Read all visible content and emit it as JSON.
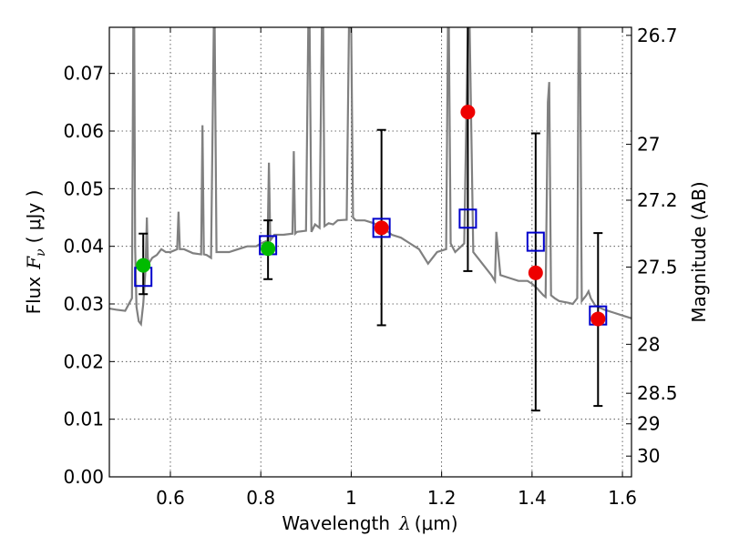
{
  "chart_data": {
    "type": "scatter",
    "xlabel": "Wavelength",
    "xlabel_symbol": "λ",
    "xlabel_unit": "(μm)",
    "ylabel": "Flux",
    "ylabel_symbol": "F",
    "ylabel_subscript": "ν",
    "ylabel_unit": "( μJy )",
    "y2label": "Magnitude (AB)",
    "xlim": [
      0.465,
      1.62
    ],
    "ylim": [
      0.0,
      0.078
    ],
    "x_ticks": [
      0.6,
      0.8,
      1.0,
      1.2,
      1.4,
      1.6
    ],
    "x_tick_labels": [
      "0.6",
      "0.8",
      "1",
      "1.2",
      "1.4",
      "1.6"
    ],
    "y_ticks": [
      0.0,
      0.01,
      0.02,
      0.03,
      0.04,
      0.05,
      0.06,
      0.07
    ],
    "y_tick_labels": [
      "0.00",
      "0.01",
      "0.02",
      "0.03",
      "0.04",
      "0.05",
      "0.06",
      "0.07"
    ],
    "y2_ticks": [
      {
        "label": "26.7",
        "flux": 0.0766
      },
      {
        "label": "27",
        "flux": 0.0577
      },
      {
        "label": "27.2",
        "flux": 0.048
      },
      {
        "label": "27.5",
        "flux": 0.0364
      },
      {
        "label": "28",
        "flux": 0.023
      },
      {
        "label": "28.5",
        "flux": 0.0145
      },
      {
        "label": "29",
        "flux": 0.0092
      },
      {
        "label": "30",
        "flux": 0.0036
      }
    ],
    "grid": true,
    "spectrum": {
      "name": "model spectrum",
      "color": "#808080",
      "x": [
        0.465,
        0.48,
        0.5,
        0.515,
        0.518,
        0.52,
        0.522,
        0.525,
        0.53,
        0.535,
        0.54,
        0.545,
        0.548,
        0.55,
        0.552,
        0.556,
        0.56,
        0.57,
        0.58,
        0.59,
        0.6,
        0.615,
        0.618,
        0.621,
        0.63,
        0.65,
        0.668,
        0.671,
        0.674,
        0.68,
        0.69,
        0.696,
        0.698,
        0.702,
        0.71,
        0.73,
        0.75,
        0.77,
        0.79,
        0.8,
        0.815,
        0.818,
        0.821,
        0.83,
        0.85,
        0.87,
        0.873,
        0.876,
        0.88,
        0.9,
        0.905,
        0.908,
        0.912,
        0.92,
        0.93,
        0.935,
        0.938,
        0.941,
        0.95,
        0.96,
        0.97,
        0.99,
        0.995,
        1.0,
        1.004,
        1.01,
        1.03,
        1.05,
        1.07,
        1.09,
        1.11,
        1.13,
        1.15,
        1.17,
        1.19,
        1.21,
        1.214,
        1.216,
        1.22,
        1.23,
        1.25,
        1.258,
        1.262,
        1.27,
        1.29,
        1.31,
        1.318,
        1.321,
        1.33,
        1.35,
        1.37,
        1.39,
        1.4,
        1.41,
        1.425,
        1.43,
        1.435,
        1.438,
        1.442,
        1.45,
        1.46,
        1.48,
        1.49,
        1.5,
        1.503,
        1.506,
        1.51,
        1.52,
        1.525,
        1.53,
        1.54,
        1.56,
        1.58,
        1.6,
        1.62
      ],
      "y": [
        0.0292,
        0.029,
        0.0288,
        0.031,
        0.078,
        0.078,
        0.04,
        0.0295,
        0.027,
        0.0265,
        0.03,
        0.036,
        0.045,
        0.038,
        0.037,
        0.0375,
        0.038,
        0.0385,
        0.0395,
        0.039,
        0.039,
        0.0395,
        0.046,
        0.0395,
        0.0395,
        0.0388,
        0.0386,
        0.061,
        0.0386,
        0.0385,
        0.038,
        0.078,
        0.078,
        0.039,
        0.039,
        0.039,
        0.0395,
        0.04,
        0.04,
        0.0405,
        0.041,
        0.0545,
        0.041,
        0.042,
        0.042,
        0.0422,
        0.0565,
        0.0422,
        0.0425,
        0.0427,
        0.078,
        0.078,
        0.0425,
        0.0438,
        0.0432,
        0.078,
        0.078,
        0.0435,
        0.044,
        0.0438,
        0.0445,
        0.0446,
        0.078,
        0.078,
        0.045,
        0.0445,
        0.0445,
        0.044,
        0.0432,
        0.042,
        0.0415,
        0.0405,
        0.0395,
        0.037,
        0.039,
        0.0395,
        0.078,
        0.078,
        0.0405,
        0.039,
        0.0405,
        0.078,
        0.078,
        0.039,
        0.037,
        0.035,
        0.034,
        0.0425,
        0.035,
        0.0345,
        0.034,
        0.034,
        0.0335,
        0.0328,
        0.0315,
        0.0312,
        0.065,
        0.0685,
        0.0315,
        0.031,
        0.0305,
        0.0302,
        0.03,
        0.031,
        0.078,
        0.078,
        0.0305,
        0.0315,
        0.0322,
        0.031,
        0.0297,
        0.029,
        0.0285,
        0.028,
        0.0275
      ]
    },
    "series": [
      {
        "name": "photometry (green)",
        "color": "#00bb00",
        "points": [
          {
            "x": 0.54,
            "y": 0.0367,
            "err_low": 0.0317,
            "err_high": 0.0422
          },
          {
            "x": 0.816,
            "y": 0.0396,
            "err_low": 0.0343,
            "err_high": 0.0445
          }
        ]
      },
      {
        "name": "photometry (red)",
        "color": "#ee0000",
        "points": [
          {
            "x": 1.067,
            "y": 0.0432,
            "err_low": 0.0263,
            "err_high": 0.0602
          },
          {
            "x": 1.258,
            "y": 0.0633,
            "err_low": 0.0357,
            "err_high": 0.078
          },
          {
            "x": 1.408,
            "y": 0.0354,
            "err_low": 0.0115,
            "err_high": 0.0596
          },
          {
            "x": 1.546,
            "y": 0.0274,
            "err_low": 0.0123,
            "err_high": 0.0423
          }
        ]
      },
      {
        "name": "model photometry (blue squares)",
        "color": "#0000cc",
        "points": [
          {
            "x": 0.54,
            "y": 0.0347
          },
          {
            "x": 0.816,
            "y": 0.0402
          },
          {
            "x": 1.067,
            "y": 0.0432
          },
          {
            "x": 1.258,
            "y": 0.0448
          },
          {
            "x": 1.408,
            "y": 0.0408
          },
          {
            "x": 1.546,
            "y": 0.028
          }
        ]
      }
    ]
  }
}
